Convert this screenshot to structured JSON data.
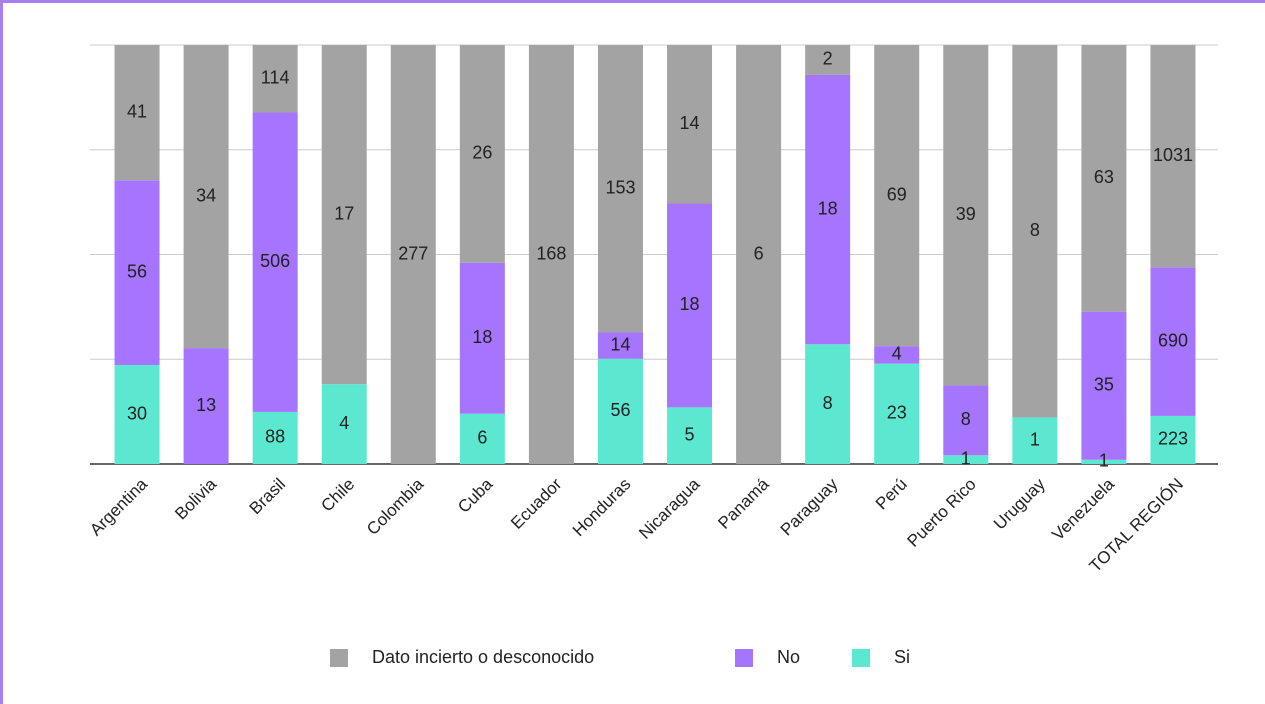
{
  "chart_data": {
    "type": "bar",
    "stacking": "percent",
    "categories": [
      "Argentina",
      "Bolivia",
      "Brasil",
      "Chile",
      "Colombia",
      "Cuba",
      "Ecuador",
      "Honduras",
      "Nicaragua",
      "Panamá",
      "Paraguay",
      "Perú",
      "Puerto Rico",
      "Uruguay",
      "Venezuela",
      "TOTAL REGIÓN"
    ],
    "series": [
      {
        "name": "Si",
        "color": "#5ce8d0",
        "values": [
          30,
          null,
          88,
          4,
          null,
          6,
          null,
          56,
          5,
          null,
          8,
          23,
          1,
          1,
          1,
          223
        ]
      },
      {
        "name": "No",
        "color": "#a575ff",
        "values": [
          56,
          13,
          506,
          null,
          null,
          18,
          null,
          14,
          18,
          null,
          18,
          4,
          8,
          null,
          35,
          690
        ]
      },
      {
        "name": "Dato incierto o desconocido",
        "color": "#a3a3a3",
        "values": [
          41,
          34,
          114,
          17,
          277,
          26,
          168,
          153,
          14,
          6,
          2,
          69,
          39,
          8,
          63,
          1031
        ]
      }
    ],
    "legend_order": [
      "Dato incierto o desconocido",
      "No",
      "Si"
    ],
    "ylim": [
      0,
      100
    ],
    "yticks": [
      0,
      25,
      50,
      75,
      100
    ],
    "grid": true,
    "legend": "bottom"
  }
}
